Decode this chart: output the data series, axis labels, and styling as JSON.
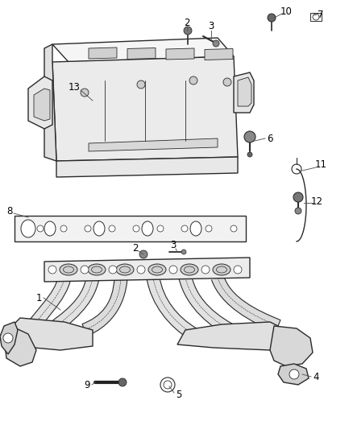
{
  "background_color": "#ffffff",
  "line_color": "#2a2a2a",
  "label_color": "#000000",
  "fig_width": 4.38,
  "fig_height": 5.33,
  "dpi": 100,
  "intake_manifold": {
    "body_color": "#f0f0f0",
    "edge_color": "#2a2a2a"
  },
  "gasket": {
    "color": "#e8e8e8",
    "edge_color": "#2a2a2a"
  },
  "exhaust_manifold": {
    "color": "#e0e0e0",
    "edge_color": "#2a2a2a"
  }
}
